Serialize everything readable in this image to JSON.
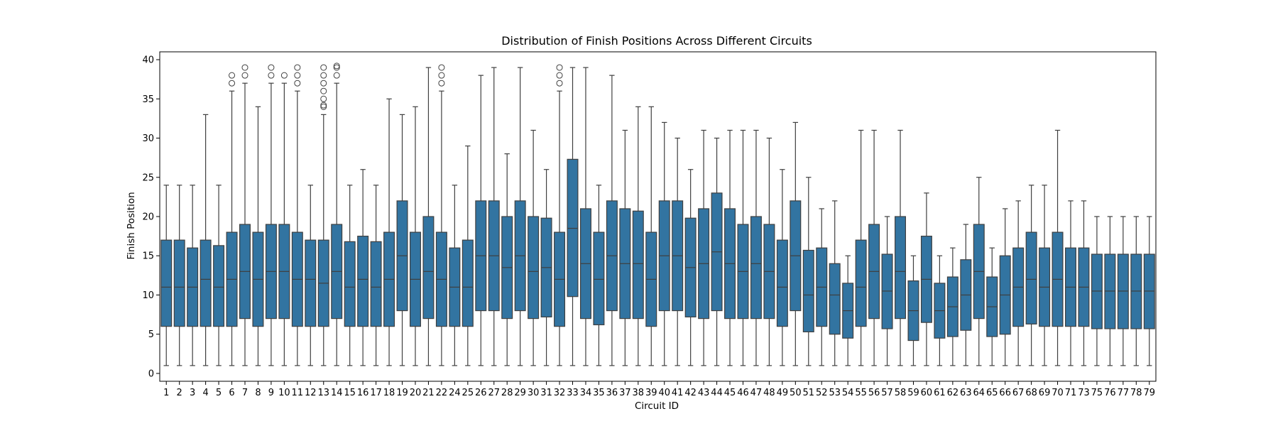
{
  "chart_data": {
    "type": "box",
    "title": "Distribution of Finish Positions Across Different Circuits",
    "xlabel": "Circuit ID",
    "ylabel": "Finish Position",
    "ylim": [
      -1,
      41
    ],
    "yticks": [
      0,
      5,
      10,
      15,
      20,
      25,
      30,
      35,
      40
    ],
    "grid": false,
    "box_color": "#3274a1",
    "line_color": "#3f3f3f",
    "categories": [
      "1",
      "2",
      "3",
      "4",
      "5",
      "6",
      "7",
      "8",
      "9",
      "10",
      "11",
      "12",
      "13",
      "14",
      "15",
      "16",
      "17",
      "18",
      "19",
      "20",
      "21",
      "22",
      "24",
      "25",
      "26",
      "27",
      "28",
      "29",
      "30",
      "31",
      "32",
      "33",
      "34",
      "35",
      "36",
      "37",
      "38",
      "39",
      "40",
      "41",
      "42",
      "43",
      "44",
      "45",
      "46",
      "47",
      "48",
      "49",
      "50",
      "51",
      "52",
      "53",
      "54",
      "55",
      "56",
      "57",
      "58",
      "59",
      "60",
      "61",
      "62",
      "63",
      "64",
      "65",
      "66",
      "67",
      "68",
      "69",
      "70",
      "71",
      "73",
      "75",
      "76",
      "77",
      "78",
      "79"
    ],
    "boxes": [
      {
        "whisker_low": 1,
        "q1": 6,
        "median": 11,
        "q3": 17,
        "whisker_high": 24,
        "outliers": []
      },
      {
        "whisker_low": 1,
        "q1": 6,
        "median": 11,
        "q3": 17,
        "whisker_high": 24,
        "outliers": []
      },
      {
        "whisker_low": 1,
        "q1": 6,
        "median": 11,
        "q3": 16,
        "whisker_high": 24,
        "outliers": []
      },
      {
        "whisker_low": 1,
        "q1": 6,
        "median": 12,
        "q3": 17,
        "whisker_high": 33,
        "outliers": []
      },
      {
        "whisker_low": 1,
        "q1": 6,
        "median": 11,
        "q3": 16.3,
        "whisker_high": 24,
        "outliers": []
      },
      {
        "whisker_low": 1,
        "q1": 6,
        "median": 12,
        "q3": 18,
        "whisker_high": 36,
        "outliers": [
          37,
          38
        ]
      },
      {
        "whisker_low": 1,
        "q1": 7,
        "median": 13,
        "q3": 19,
        "whisker_high": 37,
        "outliers": [
          38,
          39
        ]
      },
      {
        "whisker_low": 1,
        "q1": 6,
        "median": 12,
        "q3": 18,
        "whisker_high": 34,
        "outliers": []
      },
      {
        "whisker_low": 1,
        "q1": 7,
        "median": 13,
        "q3": 19,
        "whisker_high": 37,
        "outliers": [
          38,
          39
        ]
      },
      {
        "whisker_low": 1,
        "q1": 7,
        "median": 13,
        "q3": 19,
        "whisker_high": 37,
        "outliers": [
          38
        ]
      },
      {
        "whisker_low": 1,
        "q1": 6,
        "median": 12,
        "q3": 18,
        "whisker_high": 36,
        "outliers": [
          37,
          38,
          39
        ]
      },
      {
        "whisker_low": 1,
        "q1": 6,
        "median": 12,
        "q3": 17,
        "whisker_high": 24,
        "outliers": []
      },
      {
        "whisker_low": 1,
        "q1": 6,
        "median": 11.5,
        "q3": 17,
        "whisker_high": 33,
        "outliers": [
          34,
          34.2,
          35,
          36,
          37,
          38,
          39
        ]
      },
      {
        "whisker_low": 1,
        "q1": 7,
        "median": 13,
        "q3": 19,
        "whisker_high": 37,
        "outliers": [
          38,
          39,
          39.2
        ]
      },
      {
        "whisker_low": 1,
        "q1": 6,
        "median": 11,
        "q3": 16.8,
        "whisker_high": 24,
        "outliers": []
      },
      {
        "whisker_low": 1,
        "q1": 6,
        "median": 12,
        "q3": 17.5,
        "whisker_high": 26,
        "outliers": []
      },
      {
        "whisker_low": 1,
        "q1": 6,
        "median": 11,
        "q3": 16.8,
        "whisker_high": 24,
        "outliers": []
      },
      {
        "whisker_low": 1,
        "q1": 6,
        "median": 12,
        "q3": 18,
        "whisker_high": 35,
        "outliers": []
      },
      {
        "whisker_low": 1,
        "q1": 8,
        "median": 15,
        "q3": 22,
        "whisker_high": 33,
        "outliers": []
      },
      {
        "whisker_low": 1,
        "q1": 6,
        "median": 12,
        "q3": 18,
        "whisker_high": 34,
        "outliers": []
      },
      {
        "whisker_low": 1,
        "q1": 7,
        "median": 13,
        "q3": 20,
        "whisker_high": 39,
        "outliers": []
      },
      {
        "whisker_low": 1,
        "q1": 6,
        "median": 12,
        "q3": 18,
        "whisker_high": 36,
        "outliers": [
          37,
          38,
          39
        ]
      },
      {
        "whisker_low": 1,
        "q1": 6,
        "median": 11,
        "q3": 16,
        "whisker_high": 24,
        "outliers": []
      },
      {
        "whisker_low": 1,
        "q1": 6,
        "median": 11,
        "q3": 17,
        "whisker_high": 29,
        "outliers": []
      },
      {
        "whisker_low": 1,
        "q1": 8,
        "median": 15,
        "q3": 22,
        "whisker_high": 38,
        "outliers": []
      },
      {
        "whisker_low": 1,
        "q1": 8,
        "median": 15,
        "q3": 22,
        "whisker_high": 39,
        "outliers": []
      },
      {
        "whisker_low": 1,
        "q1": 7,
        "median": 13.5,
        "q3": 20,
        "whisker_high": 28,
        "outliers": []
      },
      {
        "whisker_low": 1,
        "q1": 8,
        "median": 15,
        "q3": 22,
        "whisker_high": 39,
        "outliers": []
      },
      {
        "whisker_low": 1,
        "q1": 7,
        "median": 13,
        "q3": 20,
        "whisker_high": 31,
        "outliers": []
      },
      {
        "whisker_low": 1,
        "q1": 7.2,
        "median": 13.5,
        "q3": 19.8,
        "whisker_high": 26,
        "outliers": []
      },
      {
        "whisker_low": 1,
        "q1": 6,
        "median": 12,
        "q3": 18,
        "whisker_high": 36,
        "outliers": [
          37,
          38,
          39
        ]
      },
      {
        "whisker_low": 1,
        "q1": 9.8,
        "median": 18.5,
        "q3": 27.3,
        "whisker_high": 39,
        "outliers": []
      },
      {
        "whisker_low": 1,
        "q1": 7,
        "median": 14,
        "q3": 21,
        "whisker_high": 39,
        "outliers": []
      },
      {
        "whisker_low": 1,
        "q1": 6.2,
        "median": 12,
        "q3": 18,
        "whisker_high": 24,
        "outliers": []
      },
      {
        "whisker_low": 1,
        "q1": 8,
        "median": 15,
        "q3": 22,
        "whisker_high": 38,
        "outliers": []
      },
      {
        "whisker_low": 1,
        "q1": 7,
        "median": 14,
        "q3": 21,
        "whisker_high": 31,
        "outliers": []
      },
      {
        "whisker_low": 1,
        "q1": 7,
        "median": 14,
        "q3": 20.7,
        "whisker_high": 34,
        "outliers": []
      },
      {
        "whisker_low": 1,
        "q1": 6,
        "median": 12,
        "q3": 18,
        "whisker_high": 34,
        "outliers": []
      },
      {
        "whisker_low": 1,
        "q1": 8,
        "median": 15,
        "q3": 22,
        "whisker_high": 32,
        "outliers": []
      },
      {
        "whisker_low": 1,
        "q1": 8,
        "median": 15,
        "q3": 22,
        "whisker_high": 30,
        "outliers": []
      },
      {
        "whisker_low": 1,
        "q1": 7.2,
        "median": 13.5,
        "q3": 19.8,
        "whisker_high": 26,
        "outliers": []
      },
      {
        "whisker_low": 1,
        "q1": 7,
        "median": 14,
        "q3": 21,
        "whisker_high": 31,
        "outliers": []
      },
      {
        "whisker_low": 1,
        "q1": 8,
        "median": 15.5,
        "q3": 23,
        "whisker_high": 30,
        "outliers": []
      },
      {
        "whisker_low": 1,
        "q1": 7,
        "median": 14,
        "q3": 21,
        "whisker_high": 31,
        "outliers": []
      },
      {
        "whisker_low": 1,
        "q1": 7,
        "median": 13,
        "q3": 19,
        "whisker_high": 31,
        "outliers": []
      },
      {
        "whisker_low": 1,
        "q1": 7,
        "median": 14,
        "q3": 20,
        "whisker_high": 31,
        "outliers": []
      },
      {
        "whisker_low": 1,
        "q1": 7,
        "median": 13,
        "q3": 19,
        "whisker_high": 30,
        "outliers": []
      },
      {
        "whisker_low": 1,
        "q1": 6,
        "median": 11,
        "q3": 17,
        "whisker_high": 26,
        "outliers": []
      },
      {
        "whisker_low": 1,
        "q1": 8,
        "median": 15,
        "q3": 22,
        "whisker_high": 32,
        "outliers": []
      },
      {
        "whisker_low": 1,
        "q1": 5.3,
        "median": 10,
        "q3": 15.7,
        "whisker_high": 25,
        "outliers": []
      },
      {
        "whisker_low": 1,
        "q1": 6,
        "median": 11,
        "q3": 16,
        "whisker_high": 21,
        "outliers": []
      },
      {
        "whisker_low": 1,
        "q1": 5,
        "median": 10,
        "q3": 14,
        "whisker_high": 22,
        "outliers": []
      },
      {
        "whisker_low": 1,
        "q1": 4.5,
        "median": 8,
        "q3": 11.5,
        "whisker_high": 15,
        "outliers": []
      },
      {
        "whisker_low": 1,
        "q1": 6,
        "median": 11,
        "q3": 17,
        "whisker_high": 31,
        "outliers": []
      },
      {
        "whisker_low": 1,
        "q1": 7,
        "median": 13,
        "q3": 19,
        "whisker_high": 31,
        "outliers": []
      },
      {
        "whisker_low": 1,
        "q1": 5.7,
        "median": 10.5,
        "q3": 15.2,
        "whisker_high": 20,
        "outliers": []
      },
      {
        "whisker_low": 1,
        "q1": 7,
        "median": 13,
        "q3": 20,
        "whisker_high": 31,
        "outliers": []
      },
      {
        "whisker_low": 1,
        "q1": 4.2,
        "median": 8,
        "q3": 11.8,
        "whisker_high": 15,
        "outliers": []
      },
      {
        "whisker_low": 1,
        "q1": 6.5,
        "median": 12,
        "q3": 17.5,
        "whisker_high": 23,
        "outliers": []
      },
      {
        "whisker_low": 1,
        "q1": 4.5,
        "median": 8,
        "q3": 11.5,
        "whisker_high": 15,
        "outliers": []
      },
      {
        "whisker_low": 1,
        "q1": 4.7,
        "median": 8.5,
        "q3": 12.3,
        "whisker_high": 16,
        "outliers": []
      },
      {
        "whisker_low": 1,
        "q1": 5.5,
        "median": 10,
        "q3": 14.5,
        "whisker_high": 19,
        "outliers": []
      },
      {
        "whisker_low": 1,
        "q1": 7,
        "median": 13,
        "q3": 19,
        "whisker_high": 25,
        "outliers": []
      },
      {
        "whisker_low": 1,
        "q1": 4.7,
        "median": 8.5,
        "q3": 12.3,
        "whisker_high": 16,
        "outliers": []
      },
      {
        "whisker_low": 1,
        "q1": 5,
        "median": 10,
        "q3": 15,
        "whisker_high": 21,
        "outliers": []
      },
      {
        "whisker_low": 1,
        "q1": 6,
        "median": 11,
        "q3": 16,
        "whisker_high": 22,
        "outliers": []
      },
      {
        "whisker_low": 1,
        "q1": 6.3,
        "median": 12,
        "q3": 18,
        "whisker_high": 24,
        "outliers": []
      },
      {
        "whisker_low": 1,
        "q1": 6,
        "median": 11,
        "q3": 16,
        "whisker_high": 24,
        "outliers": []
      },
      {
        "whisker_low": 1,
        "q1": 6,
        "median": 12,
        "q3": 18,
        "whisker_high": 31,
        "outliers": []
      },
      {
        "whisker_low": 1,
        "q1": 6,
        "median": 11,
        "q3": 16,
        "whisker_high": 22,
        "outliers": []
      },
      {
        "whisker_low": 1,
        "q1": 6,
        "median": 11,
        "q3": 16,
        "whisker_high": 22,
        "outliers": []
      },
      {
        "whisker_low": 1,
        "q1": 5.7,
        "median": 10.5,
        "q3": 15.2,
        "whisker_high": 20,
        "outliers": []
      },
      {
        "whisker_low": 1,
        "q1": 5.7,
        "median": 10.5,
        "q3": 15.2,
        "whisker_high": 20,
        "outliers": []
      },
      {
        "whisker_low": 1,
        "q1": 5.7,
        "median": 10.5,
        "q3": 15.2,
        "whisker_high": 20,
        "outliers": []
      },
      {
        "whisker_low": 1,
        "q1": 5.7,
        "median": 10.5,
        "q3": 15.2,
        "whisker_high": 20,
        "outliers": []
      },
      {
        "whisker_low": 1,
        "q1": 5.7,
        "median": 10.5,
        "q3": 15.2,
        "whisker_high": 20,
        "outliers": []
      }
    ]
  }
}
